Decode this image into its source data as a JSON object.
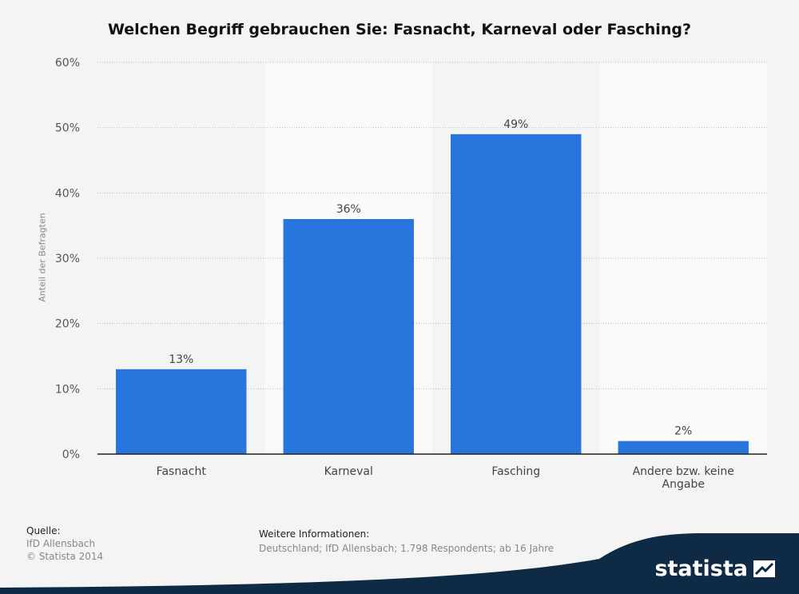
{
  "title": "Welchen Begriff gebrauchen Sie: Fasnacht, Karneval oder Fasching?",
  "chart_data": {
    "type": "bar",
    "title": "Welchen Begriff gebrauchen Sie: Fasnacht, Karneval oder Fasching?",
    "categories": [
      "Fasnacht",
      "Karneval",
      "Fasching",
      "Andere bzw. keine Angabe"
    ],
    "category_lines": [
      [
        "Fasnacht"
      ],
      [
        "Karneval"
      ],
      [
        "Fasching"
      ],
      [
        "Andere bzw. keine",
        "Angabe"
      ]
    ],
    "values": [
      13,
      36,
      49,
      2
    ],
    "data_labels": [
      "13%",
      "36%",
      "49%",
      "2%"
    ],
    "ylabel": "Anteil der Befragten",
    "xlabel": "",
    "ylim": [
      0,
      60
    ],
    "yticks": [
      0,
      10,
      20,
      30,
      40,
      50,
      60
    ],
    "ytick_labels": [
      "0%",
      "10%",
      "20%",
      "30%",
      "40%",
      "50%",
      "60%"
    ],
    "grid": true,
    "bar_color": "#2775dd"
  },
  "source": {
    "heading": "Quelle:",
    "line1": "IfD Allensbach",
    "line2": "© Statista 2014"
  },
  "info": {
    "heading": "Weitere Informationen:",
    "text": "Deutschland; IfD Allensbach; 1.798 Respondents; ab 16 Jahre"
  },
  "brand": {
    "name": "statista",
    "icon": "statista-logo-icon",
    "band_color": "#0f2a44"
  }
}
